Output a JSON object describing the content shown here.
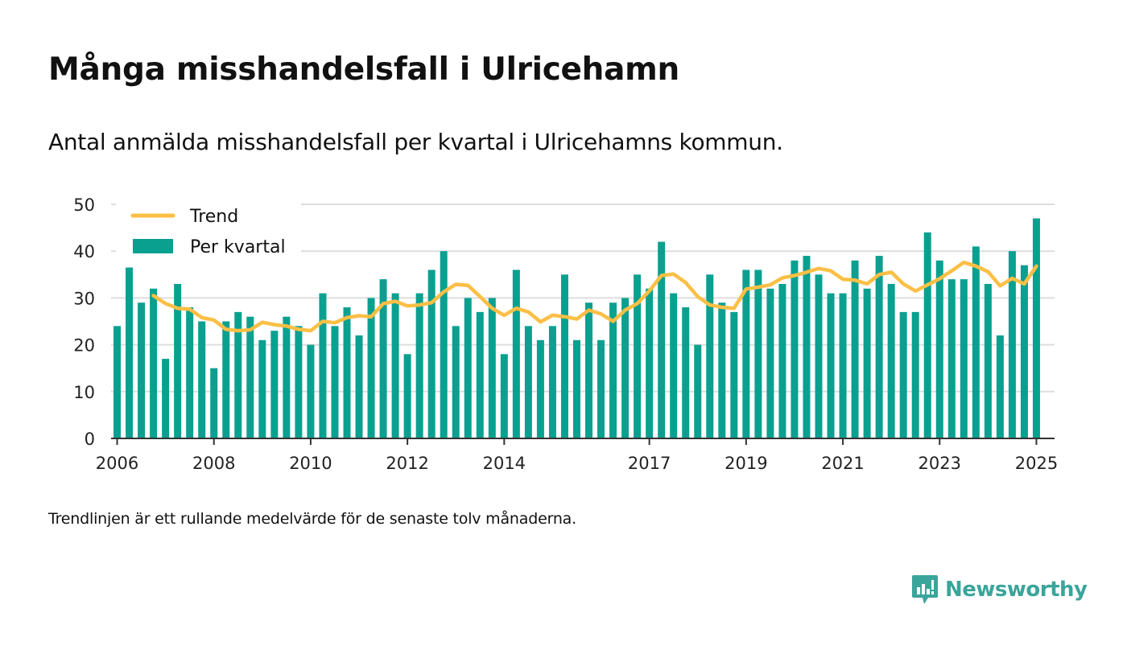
{
  "header": {
    "title": "Många misshandelsfall i Ulricehamn",
    "subtitle": "Antal anmälda misshandelsfall per kvartal i Ulricehamns kommun."
  },
  "footer": {
    "note": "Trendlinjen är ett rullande medelvärde för de senaste tolv månaderna.",
    "brand": "Newsworthy"
  },
  "colors": {
    "bar": "#0aa090",
    "trend": "#fbbf45",
    "grid": "#dddddd",
    "axis": "#333333",
    "brand": "#3aa59b"
  },
  "chart_data": {
    "type": "bar",
    "title": "Många misshandelsfall i Ulricehamn",
    "ylim": [
      0,
      50
    ],
    "yticks": [
      0,
      10,
      20,
      30,
      40,
      50
    ],
    "xlim": [
      2005.875,
      2025.375
    ],
    "xticks": [
      2006,
      2008,
      2010,
      2012,
      2014,
      2017,
      2019,
      2021,
      2023,
      2025
    ],
    "grid": true,
    "legend_position": "top-left",
    "legend": [
      "Trend",
      "Per kvartal"
    ],
    "x": [
      2006.0,
      2006.25,
      2006.5,
      2006.75,
      2007.0,
      2007.25,
      2007.5,
      2007.75,
      2008.0,
      2008.25,
      2008.5,
      2008.75,
      2009.0,
      2009.25,
      2009.5,
      2009.75,
      2010.0,
      2010.25,
      2010.5,
      2010.75,
      2011.0,
      2011.25,
      2011.5,
      2011.75,
      2012.0,
      2012.25,
      2012.5,
      2012.75,
      2013.0,
      2013.25,
      2013.5,
      2013.75,
      2014.0,
      2014.25,
      2014.5,
      2014.75,
      2015.0,
      2015.25,
      2015.5,
      2015.75,
      2016.0,
      2016.25,
      2016.5,
      2016.75,
      2017.0,
      2017.25,
      2017.5,
      2017.75,
      2018.0,
      2018.25,
      2018.5,
      2018.75,
      2019.0,
      2019.25,
      2019.5,
      2019.75,
      2020.0,
      2020.25,
      2020.5,
      2020.75,
      2021.0,
      2021.25,
      2021.5,
      2021.75,
      2022.0,
      2022.25,
      2022.5,
      2022.75,
      2023.0,
      2023.25,
      2023.5,
      2023.75,
      2024.0,
      2024.25,
      2024.5,
      2024.75,
      2025.0
    ],
    "series": [
      {
        "name": "Per kvartal",
        "type": "bar",
        "values": [
          24,
          36.5,
          29,
          32,
          17,
          33,
          28,
          25,
          15,
          25,
          27,
          26,
          21,
          23,
          26,
          24,
          20,
          31,
          24,
          28,
          22,
          30,
          34,
          31,
          18,
          31,
          36,
          40,
          24,
          30,
          27,
          30,
          18,
          36,
          24,
          21,
          24,
          35,
          21,
          29,
          21,
          29,
          30,
          35,
          32,
          42,
          31,
          28,
          20,
          35,
          29,
          27,
          36,
          36,
          32,
          33,
          38,
          39,
          35,
          31,
          31,
          38,
          32,
          39,
          33,
          27,
          27,
          44,
          38,
          34,
          34,
          41,
          33,
          22,
          40,
          37,
          47
        ]
      },
      {
        "name": "Trend",
        "type": "line",
        "x": [
          2006.75,
          2007.0,
          2007.25,
          2007.5,
          2007.75,
          2008.0,
          2008.25,
          2008.5,
          2008.75,
          2009.0,
          2009.25,
          2009.5,
          2009.75,
          2010.0,
          2010.25,
          2010.5,
          2010.75,
          2011.0,
          2011.25,
          2011.5,
          2011.75,
          2012.0,
          2012.25,
          2012.5,
          2012.75,
          2013.0,
          2013.25,
          2013.5,
          2013.75,
          2014.0,
          2014.25,
          2014.5,
          2014.75,
          2015.0,
          2015.25,
          2015.5,
          2015.75,
          2016.0,
          2016.25,
          2016.5,
          2016.75,
          2017.0,
          2017.25,
          2017.5,
          2017.75,
          2018.0,
          2018.25,
          2018.5,
          2018.75,
          2019.0,
          2019.25,
          2019.5,
          2019.75,
          2020.0,
          2020.25,
          2020.5,
          2020.75,
          2021.0,
          2021.25,
          2021.5,
          2021.75,
          2022.0,
          2022.25,
          2022.5,
          2022.75,
          2023.0,
          2023.25,
          2023.5,
          2023.75,
          2024.0,
          2024.25,
          2024.5,
          2024.75,
          2025.0
        ],
        "values": [
          30.5,
          28.8,
          27.8,
          27.6,
          25.8,
          25.3,
          23.3,
          23.0,
          23.2,
          24.8,
          24.3,
          24.0,
          23.3,
          23.0,
          25.0,
          24.7,
          25.8,
          26.2,
          26.0,
          28.8,
          29.3,
          28.3,
          28.5,
          29.0,
          31.3,
          32.9,
          32.7,
          30.3,
          27.8,
          26.3,
          27.8,
          27.0,
          24.9,
          26.3,
          26.0,
          25.5,
          27.4,
          26.6,
          25.0,
          27.4,
          28.8,
          31.5,
          34.8,
          35.1,
          33.3,
          30.3,
          28.5,
          28.0,
          27.8,
          31.9,
          32.3,
          32.8,
          34.3,
          34.8,
          35.5,
          36.3,
          35.8,
          34.0,
          33.8,
          33.0,
          35.0,
          35.5,
          33.0,
          31.5,
          32.8,
          34.1,
          35.8,
          37.6,
          36.8,
          35.6,
          32.6,
          34.2,
          33.0,
          36.8
        ]
      }
    ]
  }
}
